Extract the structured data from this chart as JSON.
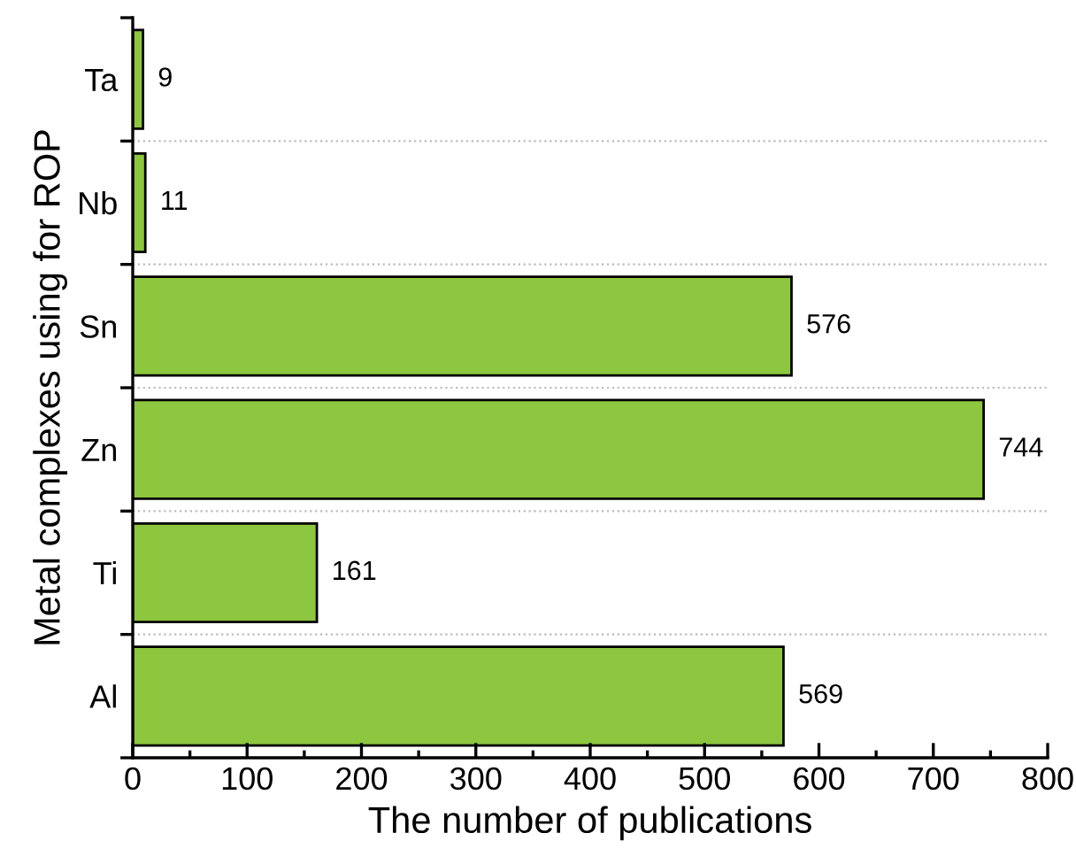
{
  "chart_data": {
    "type": "bar",
    "orientation": "horizontal",
    "xlabel": "The number of publications",
    "ylabel": "Metal complexes using for ROP",
    "categories": [
      "Ta",
      "Nb",
      "Sn",
      "Zn",
      "Ti",
      "Al"
    ],
    "values": [
      9,
      11,
      576,
      744,
      161,
      569
    ],
    "color": "#8dc63f",
    "data_labels": true,
    "xlim": [
      0,
      800
    ],
    "xticks": [
      0,
      100,
      200,
      300,
      400,
      500,
      600,
      700,
      800
    ],
    "grid": "y",
    "legend": false
  }
}
